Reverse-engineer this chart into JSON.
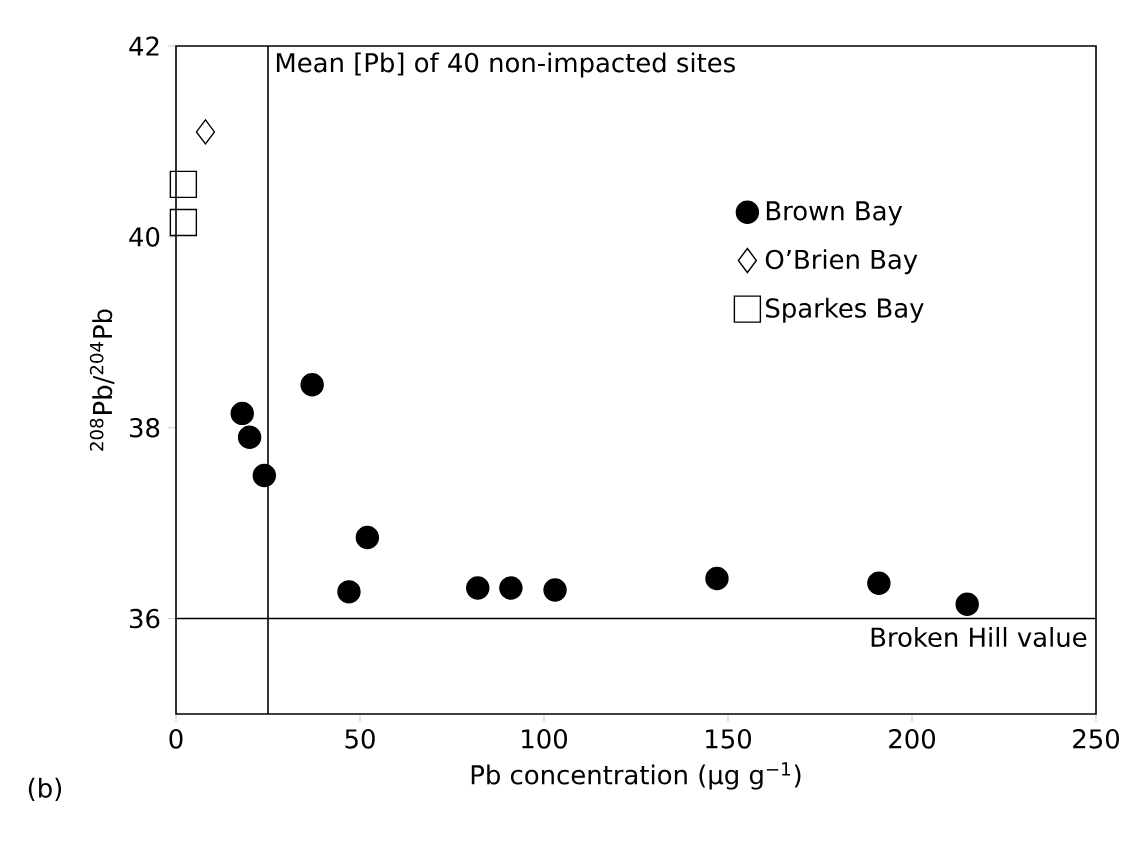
{
  "chart_data": {
    "type": "scatter",
    "xlabel": "Pb concentration (μg g$^{−1}$)",
    "ylabel": "$^{208}$Pb/$^{204}$Pb",
    "xlim": [
      0,
      250
    ],
    "ylim": [
      35,
      42
    ],
    "xticks": [
      0,
      50,
      100,
      150,
      200,
      250
    ],
    "yticks": [
      36,
      38,
      40,
      42
    ],
    "legend": "right",
    "grid": false,
    "series": [
      {
        "name": "Brown Bay",
        "color": "#000000",
        "marker": "circle",
        "x": [
          18,
          20,
          24,
          37,
          47,
          52,
          82,
          91,
          103,
          147,
          191,
          215
        ],
        "values": [
          38.15,
          37.9,
          37.5,
          38.45,
          36.28,
          36.85,
          36.32,
          36.32,
          36.3,
          36.42,
          36.37,
          36.15
        ]
      },
      {
        "name": "O’Brien Bay",
        "color": "#000000",
        "marker": "diamond",
        "x": [
          8
        ],
        "values": [
          41.1
        ]
      },
      {
        "name": "Sparkes Bay",
        "color": "#000000",
        "marker": "square",
        "x": [
          2,
          2
        ],
        "values": [
          40.55,
          40.15
        ]
      }
    ],
    "ref_lines": [
      {
        "axis": "x",
        "value": 25,
        "label": "Mean [Pb] of 40 non-impacted sites"
      },
      {
        "axis": "y",
        "value": 36,
        "label": "Broken Hill value"
      }
    ],
    "annotations": [
      "(b)"
    ]
  }
}
